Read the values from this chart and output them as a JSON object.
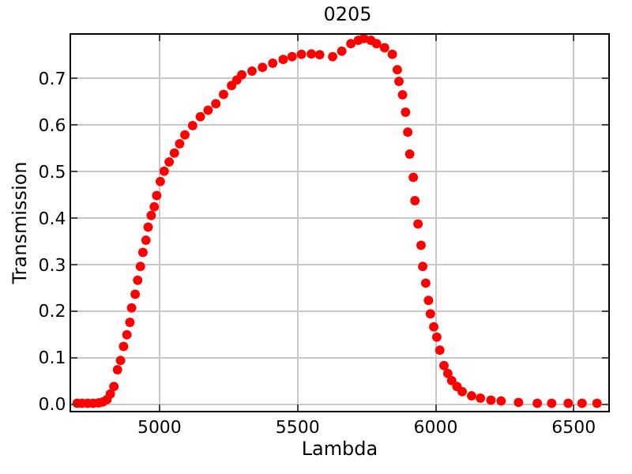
{
  "chart_data": {
    "type": "scatter",
    "title": "0205",
    "xlabel": "Lambda",
    "ylabel": "Transmission",
    "marker": "circle",
    "grid": true,
    "xlim": [
      4680,
      6625
    ],
    "ylim": [
      -0.014,
      0.793
    ],
    "xticks": [
      5000,
      5500,
      6000,
      6500
    ],
    "yticks": [
      {
        "value": 0,
        "label": "0.0"
      },
      0.1,
      0.2,
      0.3,
      0.4,
      0.5,
      0.6,
      0.7
    ],
    "series": [
      {
        "color": "#ff0000",
        "x": [
          4702,
          4720,
          4740,
          4760,
          4780,
          4795,
          4810,
          4822,
          4835,
          4848,
          4859,
          4870,
          4882,
          4893,
          4899,
          4912,
          4921,
          4931,
          4940,
          4951,
          4959,
          4970,
          4981,
          4990,
          5003,
          5017,
          5035,
          5054,
          5073,
          5092,
          5120,
          5148,
          5176,
          5204,
          5232,
          5261,
          5280,
          5298,
          5335,
          5373,
          5410,
          5448,
          5480,
          5514,
          5550,
          5580,
          5627,
          5660,
          5693,
          5720,
          5740,
          5765,
          5786,
          5815,
          5843,
          5861,
          5867,
          5880,
          5891,
          5899,
          5906,
          5919,
          5925,
          5936,
          5947,
          5953,
          5964,
          5974,
          5981,
          5993,
          6004,
          6015,
          6030,
          6044,
          6058,
          6077,
          6096,
          6130,
          6162,
          6200,
          6237,
          6300,
          6368,
          6420,
          6480,
          6530,
          6584
        ],
        "values": [
          0.002,
          0.002,
          0.002,
          0.002,
          0.003,
          0.005,
          0.01,
          0.022,
          0.038,
          0.074,
          0.094,
          0.124,
          0.149,
          0.176,
          0.207,
          0.236,
          0.266,
          0.296,
          0.326,
          0.352,
          0.38,
          0.405,
          0.424,
          0.448,
          0.478,
          0.5,
          0.52,
          0.539,
          0.559,
          0.578,
          0.598,
          0.617,
          0.631,
          0.645,
          0.665,
          0.684,
          0.696,
          0.707,
          0.715,
          0.723,
          0.732,
          0.74,
          0.746,
          0.751,
          0.752,
          0.75,
          0.746,
          0.758,
          0.774,
          0.781,
          0.785,
          0.781,
          0.774,
          0.765,
          0.751,
          0.718,
          0.693,
          0.664,
          0.627,
          0.584,
          0.537,
          0.487,
          0.437,
          0.387,
          0.341,
          0.296,
          0.26,
          0.223,
          0.194,
          0.166,
          0.144,
          0.116,
          0.083,
          0.066,
          0.051,
          0.038,
          0.027,
          0.018,
          0.013,
          0.009,
          0.007,
          0.004,
          0.002,
          0.002,
          0.002,
          0.002,
          0.002
        ]
      }
    ]
  }
}
